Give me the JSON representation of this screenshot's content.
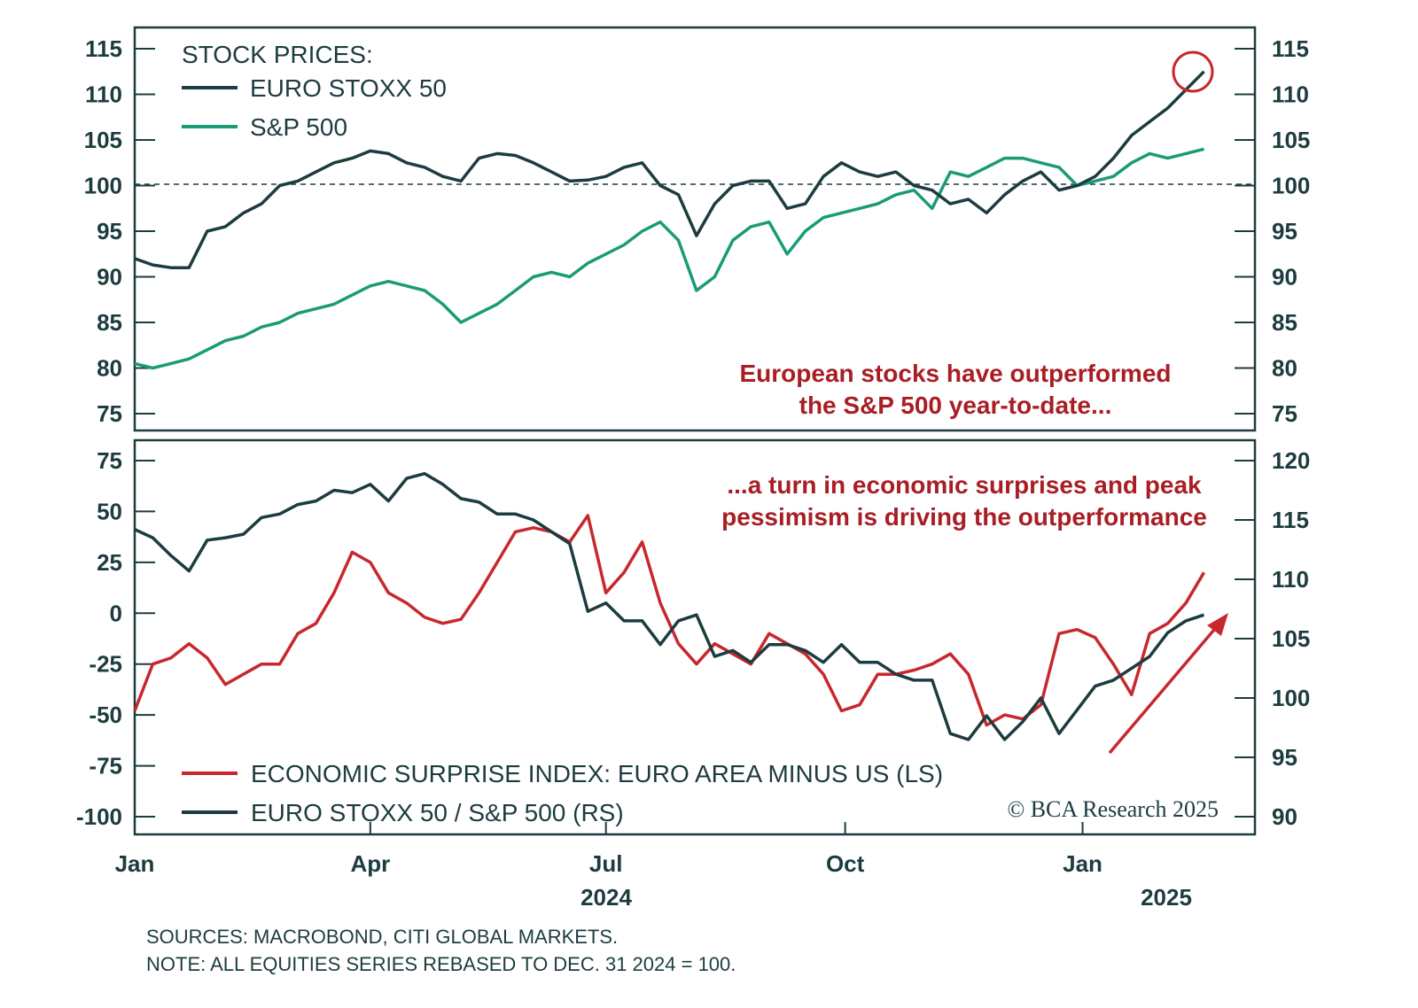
{
  "chart_data": [
    {
      "type": "line",
      "title": "STOCK PRICES:",
      "ylim": [
        75,
        115
      ],
      "yticks": [
        75,
        80,
        85,
        90,
        95,
        100,
        105,
        110,
        115
      ],
      "reference_line": 100,
      "x_unit": "weeks since Dec 31 2023",
      "series": [
        {
          "name": "EURO STOXX 50",
          "color": "#1d3c3f",
          "values": [
            92,
            91.3,
            91,
            91,
            95,
            95.5,
            97,
            98,
            100,
            100.5,
            101.5,
            102.5,
            103,
            103.8,
            103.5,
            102.5,
            102,
            101,
            100.5,
            103,
            103.5,
            103.3,
            102.5,
            101.5,
            100.5,
            100.6,
            101,
            102,
            102.5,
            100,
            99,
            94.5,
            98,
            100,
            100.5,
            100.5,
            97.5,
            98,
            101,
            102.5,
            101.5,
            101,
            101.5,
            100,
            99.5,
            98,
            98.5,
            97,
            99,
            100.5,
            101.5,
            99.5,
            100,
            101,
            103,
            105.5,
            107,
            108.5,
            110.5,
            112.5
          ]
        },
        {
          "name": "S&P 500",
          "color": "#1a9b77",
          "values": [
            80.5,
            80,
            80.5,
            81,
            82,
            83,
            83.5,
            84.5,
            85,
            86,
            86.5,
            87,
            88,
            89,
            89.5,
            89,
            88.5,
            87,
            85,
            86,
            87,
            88.5,
            90,
            90.5,
            90,
            91.5,
            92.5,
            93.5,
            95,
            96,
            94,
            88.5,
            90,
            94,
            95.5,
            96,
            92.5,
            95,
            96.5,
            97,
            97.5,
            98,
            99,
            99.5,
            97.5,
            101.5,
            101,
            102,
            103,
            103,
            102.5,
            102,
            100,
            100.5,
            101,
            102.5,
            103.5,
            103,
            103.5,
            104
          ]
        }
      ],
      "annotation": [
        "European stocks have outperformed",
        "the S&P 500 year-to-date..."
      ]
    },
    {
      "type": "line",
      "ylim_left": [
        -100,
        75
      ],
      "yticks_left": [
        -100,
        -75,
        -50,
        -25,
        0,
        25,
        50,
        75
      ],
      "ylim_right": [
        90,
        120
      ],
      "yticks_right": [
        90,
        95,
        100,
        105,
        110,
        115,
        120
      ],
      "series": [
        {
          "name": "ECONOMIC SURPRISE INDEX: EURO AREA MINUS US (LS)",
          "axis": "left",
          "color": "#c8282d",
          "values": [
            -48,
            -25,
            -22,
            -15,
            -22,
            -35,
            -30,
            -25,
            -25,
            -10,
            -5,
            10,
            30,
            25,
            10,
            5,
            -2,
            -5,
            -3,
            10,
            25,
            40,
            42,
            40,
            35,
            48,
            10,
            20,
            35,
            5,
            -15,
            -25,
            -15,
            -20,
            -25,
            -10,
            -15,
            -20,
            -30,
            -48,
            -45,
            -30,
            -30,
            -28,
            -25,
            -20,
            -30,
            -55,
            -50,
            -52,
            -45,
            -10,
            -8,
            -12,
            -25,
            -40,
            -10,
            -5,
            5,
            20
          ]
        },
        {
          "name": "EURO STOXX 50 / S&P 500 (RS)",
          "axis": "right",
          "color": "#1d3c3f",
          "values": [
            114.2,
            113.5,
            112,
            110.7,
            113.3,
            113.5,
            113.8,
            115.2,
            115.5,
            116.3,
            116.6,
            117.5,
            117.3,
            118,
            116.6,
            118.5,
            118.9,
            118,
            116.8,
            116.5,
            115.5,
            115.5,
            115,
            114,
            113,
            107.3,
            108,
            106.5,
            106.5,
            104.5,
            106.5,
            107,
            103.5,
            104,
            103,
            104.5,
            104.5,
            104,
            103,
            104.5,
            103,
            103,
            102,
            101.5,
            101.5,
            97,
            96.5,
            98.5,
            96.5,
            98,
            100,
            97,
            99,
            101,
            101.5,
            102.5,
            103.5,
            105.5,
            106.5,
            107
          ]
        }
      ],
      "annotation": [
        "...a turn in economic surprises and peak",
        "pessimism is driving the outperformance"
      ]
    }
  ],
  "x_axis": {
    "ticks": [
      "Jan",
      "Apr",
      "Jul",
      "Oct",
      "Jan"
    ],
    "tick_weeks": [
      0,
      13,
      26,
      39.2,
      52.3
    ],
    "years": [
      "2024",
      "2025"
    ]
  },
  "copyright": "© BCA Research 2025",
  "sources": "SOURCES: MACROBOND, CITI GLOBAL MARKETS.",
  "note": "NOTE: ALL EQUITIES SERIES REBASED TO DEC. 31 2024 = 100."
}
